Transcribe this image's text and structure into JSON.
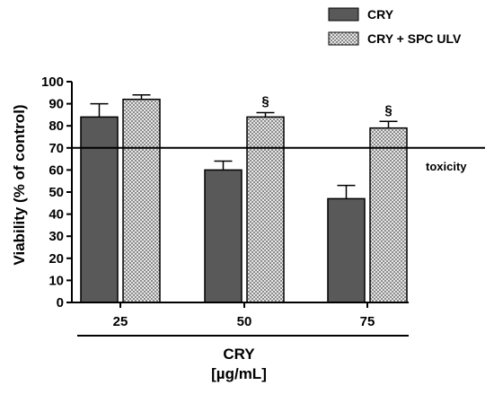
{
  "chart_data": {
    "type": "bar",
    "categories": [
      "25",
      "50",
      "75"
    ],
    "series": [
      {
        "name": "CRY",
        "values": [
          84,
          60,
          47
        ],
        "errors": [
          6,
          4,
          6
        ],
        "marks": [
          "",
          "",
          ""
        ],
        "pattern": "solid",
        "color": "#595959"
      },
      {
        "name": "CRY + SPC ULV",
        "values": [
          92,
          84,
          79
        ],
        "errors": [
          2,
          2,
          3
        ],
        "marks": [
          "",
          "§",
          "§"
        ],
        "pattern": "checkered",
        "color": "#b8b8b8"
      }
    ],
    "ylabel": "Viability (% of control)",
    "xlabel_line1": "CRY",
    "xlabel_line2": "[µg/mL]",
    "ylim": [
      0,
      100
    ],
    "yticks": [
      "0",
      "10",
      "20",
      "30",
      "40",
      "50",
      "60",
      "70",
      "80",
      "90",
      "100"
    ],
    "threshold": {
      "value": 70,
      "label": "toxicity"
    },
    "legend_position": "top-right",
    "grid": false
  }
}
